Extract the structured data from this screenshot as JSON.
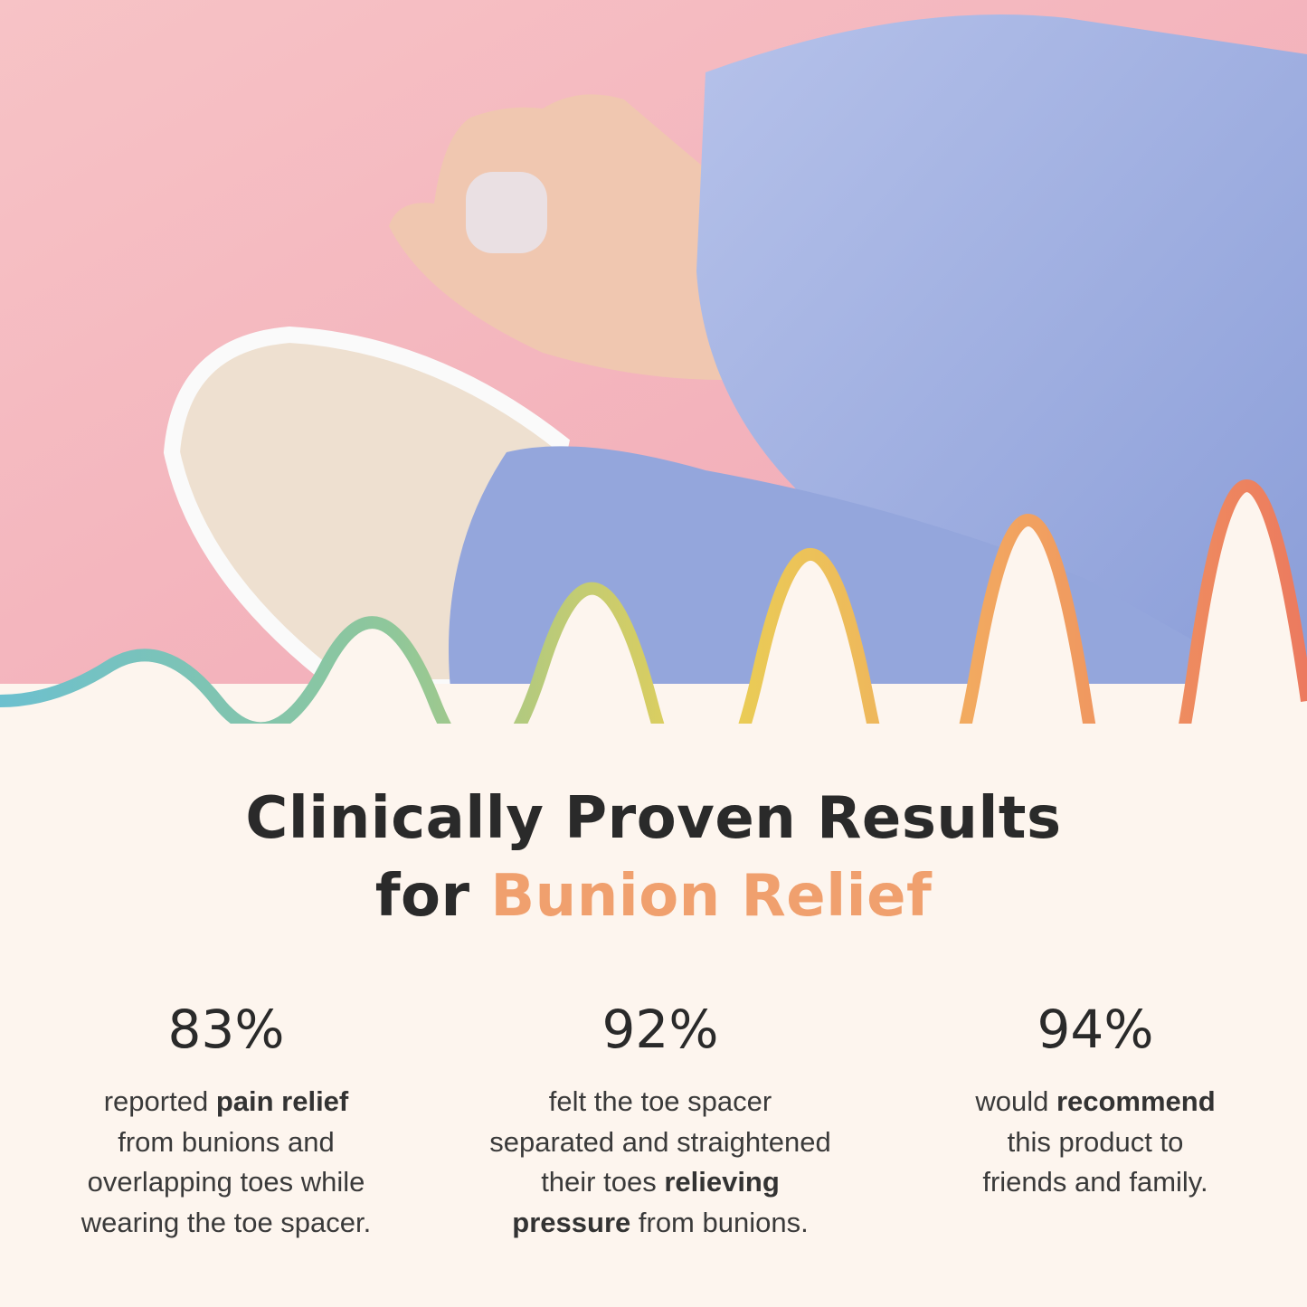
{
  "headline": {
    "line1": "Clinically Proven Results",
    "line2_prefix": "for ",
    "line2_accent": "Bunion Relief",
    "accent_color": "#f0a06e"
  },
  "photo": {
    "subject": "foot-with-toe-spacer-and-sneaker",
    "background_color": "#f6b9c0",
    "fabric_color": "#9fb0e0"
  },
  "wave_colors": [
    "#6cc0cf",
    "#8fc79a",
    "#e9cf55",
    "#f2a860",
    "#ec7a5f"
  ],
  "stats": [
    {
      "value": "83%",
      "lines": [
        [
          "reported ",
          "pain relief",
          ""
        ],
        [
          "from bunions and",
          "",
          ""
        ],
        [
          "overlapping toes while",
          "",
          ""
        ],
        [
          "wearing the toe spacer.",
          "",
          ""
        ]
      ]
    },
    {
      "value": "92%",
      "lines": [
        [
          "felt the toe spacer",
          "",
          ""
        ],
        [
          "separated and straightened",
          "",
          ""
        ],
        [
          "their toes ",
          "relieving",
          ""
        ],
        [
          "",
          "pressure",
          " from bunions."
        ]
      ]
    },
    {
      "value": "94%",
      "lines": [
        [
          "would ",
          "recommend",
          ""
        ],
        [
          "this product to",
          "",
          ""
        ],
        [
          "friends and family.",
          "",
          ""
        ]
      ]
    }
  ]
}
